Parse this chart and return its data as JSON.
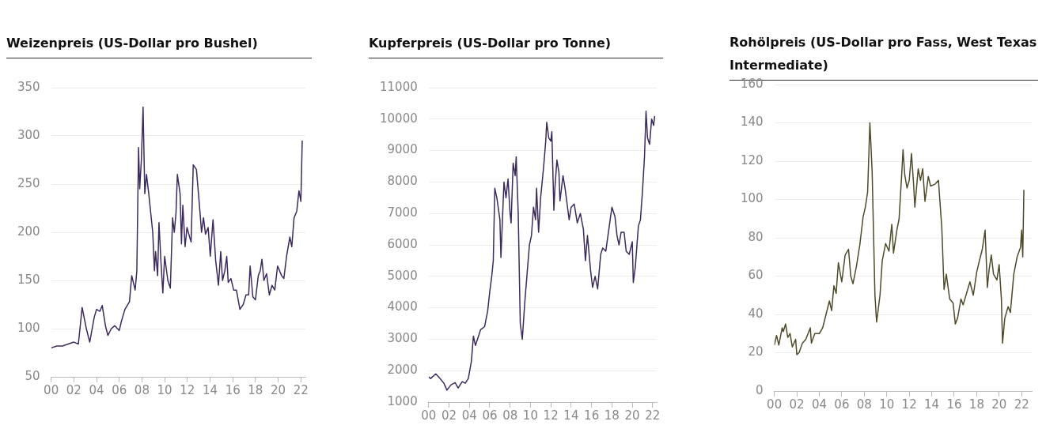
{
  "chart_data": [
    {
      "type": "line",
      "title": "Weizenpreis (US-Dollar pro Bushel)",
      "color": "#3d2a5c",
      "grid": "y",
      "x": [
        2000,
        2000.5,
        2001,
        2001.5,
        2002,
        2002.4,
        2002.73,
        2003.1,
        2003.4,
        2003.8,
        2004,
        2004.3,
        2004.5,
        2004.8,
        2005,
        2005.3,
        2005.6,
        2006,
        2006.2,
        2006.5,
        2006.9,
        2007.1,
        2007.4,
        2007.55,
        2007.7,
        2007.8,
        2007.95,
        2008.1,
        2008.25,
        2008.4,
        2008.6,
        2008.95,
        2009.1,
        2009.2,
        2009.38,
        2009.5,
        2009.67,
        2009.84,
        2010,
        2010.28,
        2010.5,
        2010.7,
        2010.85,
        2011,
        2011.12,
        2011.36,
        2011.48,
        2011.6,
        2011.8,
        2011.97,
        2012.2,
        2012.33,
        2012.52,
        2012.8,
        2013.05,
        2013.25,
        2013.42,
        2013.6,
        2013.83,
        2014.02,
        2014.26,
        2014.5,
        2014.74,
        2014.94,
        2015.1,
        2015.3,
        2015.47,
        2015.6,
        2015.84,
        2016.08,
        2016.32,
        2016.63,
        2016.92,
        2017.17,
        2017.4,
        2017.53,
        2017.77,
        2018,
        2018.25,
        2018.42,
        2018.57,
        2018.74,
        2018.98,
        2019.22,
        2019.46,
        2019.7,
        2019.95,
        2020.3,
        2020.5,
        2020.74,
        2021.03,
        2021.2,
        2021.4,
        2021.64,
        2021.83,
        2022,
        2022.12
      ],
      "values": [
        80,
        82,
        82,
        84,
        86,
        84,
        122,
        100,
        86,
        112,
        120,
        118,
        124,
        102,
        93,
        100,
        103,
        98,
        108,
        120,
        128,
        155,
        140,
        160,
        288,
        245,
        275,
        330,
        240,
        260,
        240,
        200,
        160,
        180,
        155,
        210,
        170,
        137,
        175,
        150,
        142,
        215,
        200,
        220,
        260,
        240,
        188,
        228,
        185,
        205,
        195,
        190,
        270,
        265,
        230,
        200,
        215,
        198,
        205,
        175,
        213,
        170,
        145,
        180,
        150,
        160,
        175,
        148,
        152,
        140,
        140,
        120,
        125,
        135,
        135,
        165,
        133,
        130,
        155,
        160,
        172,
        150,
        157,
        135,
        145,
        140,
        165,
        155,
        152,
        175,
        195,
        185,
        215,
        222,
        243,
        232,
        295
      ],
      "xlim": [
        2000,
        2022.4
      ],
      "xticks": [
        {
          "value": 2000,
          "label": "00"
        },
        {
          "value": 2002,
          "label": "02"
        },
        {
          "value": 2004,
          "label": "04"
        },
        {
          "value": 2006,
          "label": "06"
        },
        {
          "value": 2008,
          "label": "08"
        },
        {
          "value": 2010,
          "label": "10"
        },
        {
          "value": 2012,
          "label": "12"
        },
        {
          "value": 2014,
          "label": "14"
        },
        {
          "value": 2016,
          "label": "16"
        },
        {
          "value": 2018,
          "label": "18"
        },
        {
          "value": 2020,
          "label": "20"
        },
        {
          "value": 2022,
          "label": "22"
        }
      ],
      "ylim": [
        50,
        350
      ],
      "yticks": [
        50,
        100,
        150,
        200,
        250,
        300,
        350
      ]
    },
    {
      "type": "line",
      "title": "Kupferpreis (US-Dollar pro Tonne)",
      "color": "#3d2a5c",
      "grid": "y",
      "x": [
        2000,
        2000.2,
        2000.7,
        2001,
        2001.5,
        2001.8,
        2002.2,
        2002.6,
        2002.9,
        2003.3,
        2003.6,
        2003.9,
        2004.2,
        2004.4,
        2004.6,
        2004.9,
        2005.1,
        2005.5,
        2005.8,
        2006,
        2006.2,
        2006.35,
        2006.5,
        2006.7,
        2007,
        2007.1,
        2007.4,
        2007.6,
        2007.8,
        2008,
        2008.1,
        2008.3,
        2008.5,
        2008.6,
        2008.8,
        2009,
        2009.2,
        2009.45,
        2009.7,
        2009.9,
        2010.1,
        2010.3,
        2010.5,
        2010.6,
        2010.8,
        2011,
        2011.3,
        2011.5,
        2011.6,
        2011.8,
        2012,
        2012.1,
        2012.3,
        2012.4,
        2012.6,
        2012.8,
        2012.9,
        2013.2,
        2013.4,
        2013.6,
        2013.8,
        2014,
        2014.3,
        2014.6,
        2014.9,
        2015.2,
        2015.4,
        2015.6,
        2015.9,
        2016.1,
        2016.35,
        2016.6,
        2016.9,
        2017.1,
        2017.4,
        2017.7,
        2018,
        2018.3,
        2018.5,
        2018.7,
        2018.9,
        2019.2,
        2019.4,
        2019.7,
        2020,
        2020.1,
        2020.3,
        2020.6,
        2020.8,
        2021,
        2021.2,
        2021.35,
        2021.5,
        2021.7,
        2021.9,
        2022.1,
        2022.2
      ],
      "values": [
        1800,
        1750,
        1900,
        1800,
        1600,
        1380,
        1550,
        1620,
        1450,
        1650,
        1600,
        1750,
        2300,
        3100,
        2800,
        3100,
        3300,
        3400,
        3900,
        4500,
        5000,
        5500,
        7800,
        7500,
        6800,
        5600,
        8000,
        7500,
        8100,
        7000,
        6700,
        8600,
        8200,
        8800,
        7000,
        3500,
        3000,
        4200,
        5200,
        6000,
        6300,
        7200,
        6800,
        7800,
        6400,
        7500,
        8500,
        9300,
        9900,
        9400,
        9300,
        9600,
        7100,
        7800,
        8700,
        8300,
        7400,
        8200,
        7800,
        7300,
        6800,
        7200,
        7300,
        6700,
        7000,
        6500,
        5500,
        6300,
        5200,
        4650,
        5000,
        4600,
        5700,
        5900,
        5800,
        6500,
        7200,
        6900,
        6300,
        6000,
        6400,
        6400,
        5800,
        5700,
        6100,
        4800,
        5300,
        6600,
        6800,
        7700,
        8800,
        10250,
        9400,
        9200,
        10000,
        9800,
        10100
      ],
      "xlim": [
        2000,
        2022.4
      ],
      "xticks": [
        {
          "value": 2000,
          "label": "00"
        },
        {
          "value": 2002,
          "label": "02"
        },
        {
          "value": 2004,
          "label": "04"
        },
        {
          "value": 2006,
          "label": "06"
        },
        {
          "value": 2008,
          "label": "08"
        },
        {
          "value": 2010,
          "label": "10"
        },
        {
          "value": 2012,
          "label": "12"
        },
        {
          "value": 2014,
          "label": "14"
        },
        {
          "value": 2016,
          "label": "16"
        },
        {
          "value": 2018,
          "label": "18"
        },
        {
          "value": 2020,
          "label": "20"
        },
        {
          "value": 2022,
          "label": "22"
        }
      ],
      "ylim": [
        1000,
        11000
      ],
      "yticks": [
        1000,
        2000,
        3000,
        4000,
        5000,
        6000,
        7000,
        8000,
        9000,
        10000,
        11000
      ]
    },
    {
      "type": "line",
      "title": "Rohölpreis (US-Dollar pro Fass, West Texas Intermediate)",
      "color": "#4f4a2a",
      "grid": "y",
      "x": [
        2000,
        2000.2,
        2000.4,
        2000.7,
        2000.8,
        2001,
        2001.2,
        2001.4,
        2001.6,
        2001.9,
        2002,
        2002.2,
        2002.5,
        2002.8,
        2003,
        2003.2,
        2003.3,
        2003.6,
        2004,
        2004.3,
        2004.6,
        2004.9,
        2005.1,
        2005.3,
        2005.5,
        2005.7,
        2006,
        2006.3,
        2006.6,
        2006.8,
        2007,
        2007.3,
        2007.6,
        2007.9,
        2008.1,
        2008.3,
        2008.5,
        2008.7,
        2008.95,
        2009.1,
        2009.4,
        2009.6,
        2009.9,
        2010.2,
        2010.45,
        2010.6,
        2010.9,
        2011.1,
        2011.35,
        2011.45,
        2011.6,
        2011.8,
        2012,
        2012.2,
        2012.4,
        2012.5,
        2012.8,
        2013,
        2013.2,
        2013.4,
        2013.7,
        2013.9,
        2014.3,
        2014.6,
        2014.9,
        2015.1,
        2015.3,
        2015.6,
        2015.9,
        2016.1,
        2016.3,
        2016.6,
        2016.8,
        2017.1,
        2017.4,
        2017.7,
        2018,
        2018.2,
        2018.5,
        2018.75,
        2018.95,
        2019.1,
        2019.3,
        2019.5,
        2019.8,
        2020,
        2020.2,
        2020.3,
        2020.5,
        2020.8,
        2021,
        2021.3,
        2021.6,
        2021.9,
        2022,
        2022.1,
        2022.2
      ],
      "values": [
        24,
        29,
        24,
        33,
        31,
        35,
        28,
        30,
        23,
        27,
        19,
        20,
        25,
        27,
        30,
        33,
        25,
        30,
        30,
        33,
        40,
        47,
        42,
        55,
        51,
        67,
        57,
        71,
        74,
        60,
        56,
        65,
        76,
        91,
        96,
        104,
        140,
        115,
        50,
        36,
        50,
        68,
        77,
        73,
        87,
        72,
        84,
        90,
        115,
        126,
        113,
        106,
        110,
        124,
        107,
        96,
        116,
        110,
        116,
        99,
        112,
        107,
        108,
        110,
        85,
        53,
        61,
        48,
        46,
        35,
        38,
        48,
        45,
        51,
        57,
        50,
        62,
        67,
        74,
        84,
        54,
        63,
        71,
        61,
        58,
        66,
        48,
        25,
        38,
        44,
        41,
        61,
        70,
        75,
        84,
        70,
        105
      ],
      "xlim": [
        2000,
        2022.9
      ],
      "xticks": [
        {
          "value": 2000,
          "label": "00"
        },
        {
          "value": 2002,
          "label": "02"
        },
        {
          "value": 2004,
          "label": "04"
        },
        {
          "value": 2006,
          "label": "06"
        },
        {
          "value": 2008,
          "label": "08"
        },
        {
          "value": 2010,
          "label": "10"
        },
        {
          "value": 2012,
          "label": "12"
        },
        {
          "value": 2014,
          "label": "14"
        },
        {
          "value": 2016,
          "label": "16"
        },
        {
          "value": 2018,
          "label": "18"
        },
        {
          "value": 2020,
          "label": "20"
        },
        {
          "value": 2022,
          "label": "22"
        }
      ],
      "ylim": [
        0,
        160
      ],
      "yticks": [
        0,
        20,
        40,
        60,
        80,
        100,
        120,
        140,
        160
      ]
    }
  ]
}
